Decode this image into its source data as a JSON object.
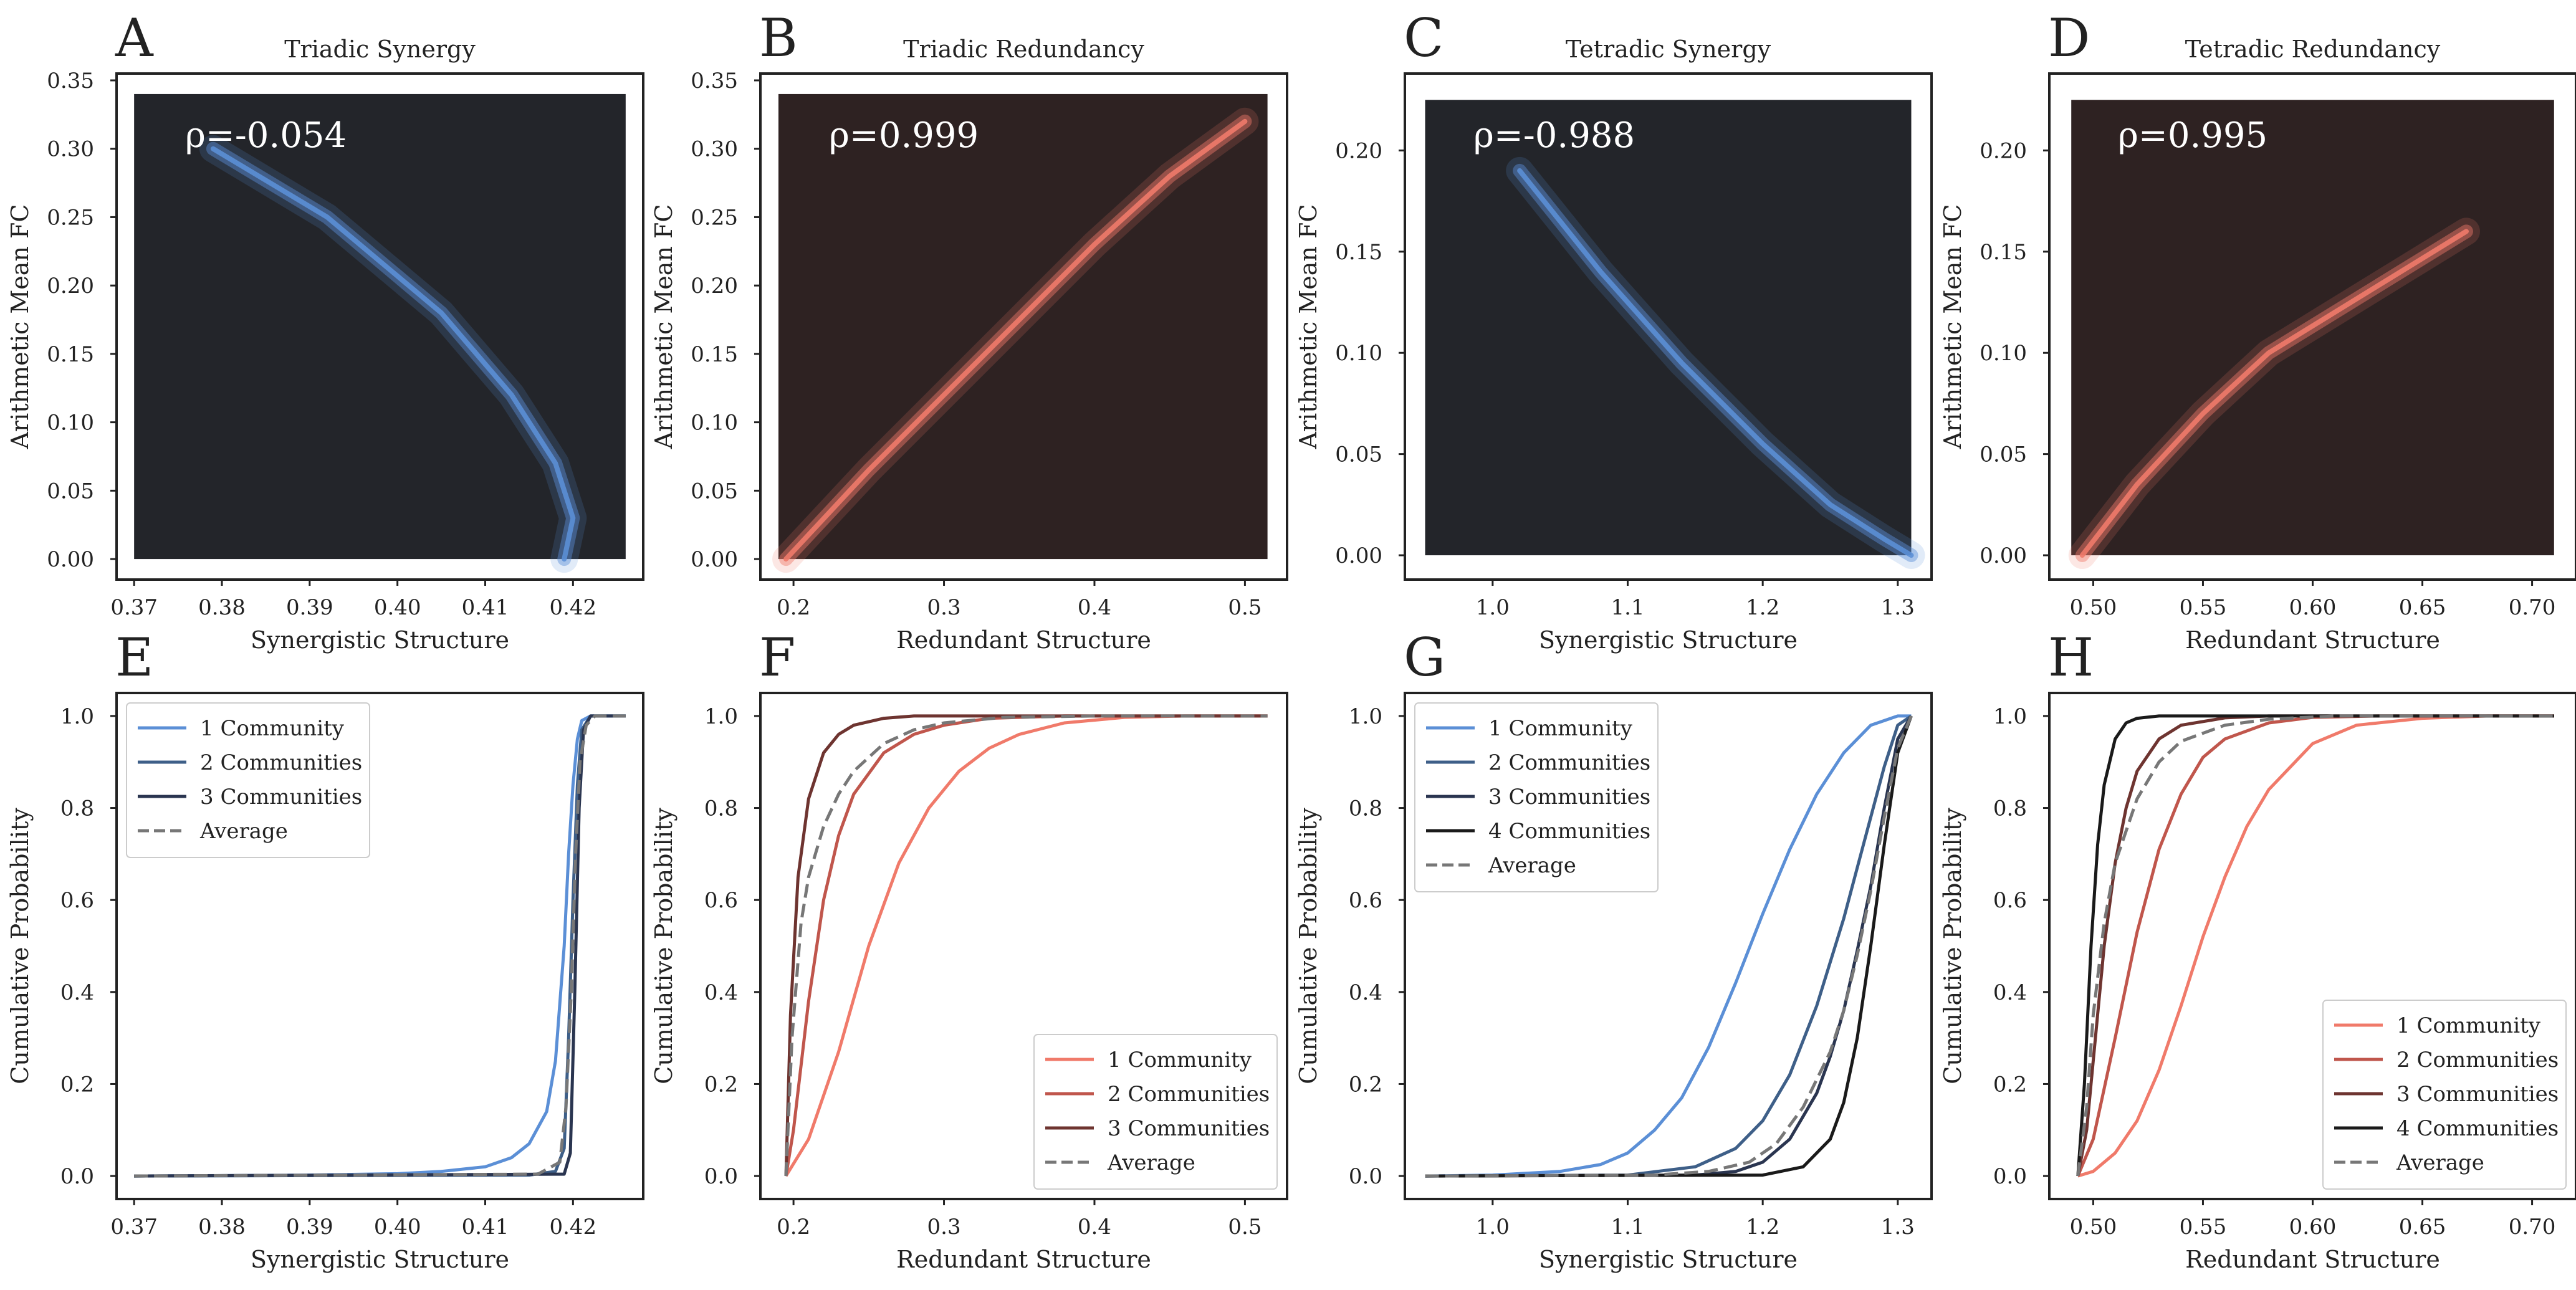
{
  "figure": {
    "colors": {
      "hex_bg_blue": "#23252a",
      "hex_bg_red": "#2e2222",
      "blue": "#5b8fd6",
      "red": "#f07a6a",
      "average": "#777777",
      "axis": "#222222",
      "annotation": "#ffffff"
    }
  },
  "chart_data": [
    {
      "panel": "A",
      "type": "heatmap",
      "title": "Triadic Synergy",
      "xlabel": "Synergistic Structure",
      "ylabel": "Arithmetic Mean FC",
      "xlim": [
        0.368,
        0.428
      ],
      "ylim": [
        -0.015,
        0.355
      ],
      "xticks": [
        0.37,
        0.38,
        0.39,
        0.4,
        0.41,
        0.42
      ],
      "xtick_labels": [
        "0.37",
        "0.38",
        "0.39",
        "0.40",
        "0.41",
        "0.42"
      ],
      "yticks": [
        0.0,
        0.05,
        0.1,
        0.15,
        0.2,
        0.25,
        0.3,
        0.35
      ],
      "ytick_labels": [
        "0.00",
        "0.05",
        "0.10",
        "0.15",
        "0.20",
        "0.25",
        "0.30",
        "0.35"
      ],
      "annotation": "ρ=-0.054",
      "color_scheme": "blue",
      "hexbin_extent": {
        "x": [
          0.37,
          0.426
        ],
        "y": [
          0.0,
          0.34
        ]
      },
      "trend": {
        "x": [
          0.379,
          0.392,
          0.405,
          0.413,
          0.418,
          0.42,
          0.419
        ],
        "y": [
          0.3,
          0.25,
          0.18,
          0.12,
          0.07,
          0.03,
          0.0
        ]
      }
    },
    {
      "panel": "B",
      "type": "heatmap",
      "title": "Triadic Redundancy",
      "xlabel": "Redundant Structure",
      "ylabel": "Arithmetic Mean FC",
      "xlim": [
        0.178,
        0.528
      ],
      "ylim": [
        -0.015,
        0.355
      ],
      "xticks": [
        0.2,
        0.3,
        0.4,
        0.5
      ],
      "xtick_labels": [
        "0.2",
        "0.3",
        "0.4",
        "0.5"
      ],
      "yticks": [
        0.0,
        0.05,
        0.1,
        0.15,
        0.2,
        0.25,
        0.3,
        0.35
      ],
      "ytick_labels": [
        "0.00",
        "0.05",
        "0.10",
        "0.15",
        "0.20",
        "0.25",
        "0.30",
        "0.35"
      ],
      "annotation": "ρ=0.999",
      "color_scheme": "red",
      "hexbin_extent": {
        "x": [
          0.19,
          0.515
        ],
        "y": [
          0.0,
          0.34
        ]
      },
      "trend": {
        "x": [
          0.195,
          0.25,
          0.3,
          0.35,
          0.4,
          0.45,
          0.5
        ],
        "y": [
          0.0,
          0.065,
          0.12,
          0.175,
          0.23,
          0.28,
          0.32
        ]
      }
    },
    {
      "panel": "C",
      "type": "heatmap",
      "title": "Tetradic Synergy",
      "xlabel": "Synergistic Structure",
      "ylabel": "Arithmetic Mean FC",
      "xlim": [
        0.935,
        1.325
      ],
      "ylim": [
        -0.012,
        0.238
      ],
      "xticks": [
        1.0,
        1.1,
        1.2,
        1.3
      ],
      "xtick_labels": [
        "1.0",
        "1.1",
        "1.2",
        "1.3"
      ],
      "yticks": [
        0.0,
        0.05,
        0.1,
        0.15,
        0.2
      ],
      "ytick_labels": [
        "0.00",
        "0.05",
        "0.10",
        "0.15",
        "0.20"
      ],
      "annotation": "ρ=-0.988",
      "color_scheme": "blue",
      "hexbin_extent": {
        "x": [
          0.95,
          1.31
        ],
        "y": [
          0.0,
          0.225
        ]
      },
      "trend": {
        "x": [
          1.02,
          1.08,
          1.14,
          1.2,
          1.25,
          1.29,
          1.31
        ],
        "y": [
          0.19,
          0.14,
          0.095,
          0.055,
          0.025,
          0.008,
          0.0
        ]
      }
    },
    {
      "panel": "D",
      "type": "heatmap",
      "title": "Tetradic Redundancy",
      "xlabel": "Redundant Structure",
      "ylabel": "Arithmetic Mean FC",
      "xlim": [
        0.48,
        0.72
      ],
      "ylim": [
        -0.012,
        0.238
      ],
      "xticks": [
        0.5,
        0.55,
        0.6,
        0.65,
        0.7
      ],
      "xtick_labels": [
        "0.50",
        "0.55",
        "0.60",
        "0.65",
        "0.70"
      ],
      "yticks": [
        0.0,
        0.05,
        0.1,
        0.15,
        0.2
      ],
      "ytick_labels": [
        "0.00",
        "0.05",
        "0.10",
        "0.15",
        "0.20"
      ],
      "annotation": "ρ=0.995",
      "color_scheme": "red",
      "hexbin_extent": {
        "x": [
          0.49,
          0.71
        ],
        "y": [
          0.0,
          0.225
        ]
      },
      "trend": {
        "x": [
          0.495,
          0.52,
          0.55,
          0.58,
          0.61,
          0.64,
          0.67
        ],
        "y": [
          0.0,
          0.035,
          0.07,
          0.1,
          0.12,
          0.14,
          0.16
        ]
      }
    },
    {
      "panel": "E",
      "type": "line",
      "title": "",
      "xlabel": "Synergistic Structure",
      "ylabel": "Cumulative Probability",
      "xlim": [
        0.368,
        0.428
      ],
      "ylim": [
        -0.05,
        1.05
      ],
      "xticks": [
        0.37,
        0.38,
        0.39,
        0.4,
        0.41,
        0.42
      ],
      "xtick_labels": [
        "0.37",
        "0.38",
        "0.39",
        "0.40",
        "0.41",
        "0.42"
      ],
      "yticks": [
        0.0,
        0.2,
        0.4,
        0.6,
        0.8,
        1.0
      ],
      "ytick_labels": [
        "0.0",
        "0.2",
        "0.4",
        "0.6",
        "0.8",
        "1.0"
      ],
      "legend_position": "top-left",
      "series": [
        {
          "name": "1 Community",
          "color": "#5b8fd6",
          "dash": false,
          "x": [
            0.37,
            0.39,
            0.4,
            0.405,
            0.41,
            0.413,
            0.415,
            0.417,
            0.418,
            0.419,
            0.4195,
            0.42,
            0.4205,
            0.421,
            0.422,
            0.426
          ],
          "y": [
            0.0,
            0.002,
            0.005,
            0.01,
            0.02,
            0.04,
            0.07,
            0.14,
            0.25,
            0.5,
            0.7,
            0.85,
            0.95,
            0.99,
            1.0,
            1.0
          ]
        },
        {
          "name": "2 Communities",
          "color": "#3e5f88",
          "dash": false,
          "x": [
            0.37,
            0.415,
            0.418,
            0.419,
            0.4195,
            0.42,
            0.4205,
            0.421,
            0.422,
            0.426
          ],
          "y": [
            0.0,
            0.002,
            0.01,
            0.06,
            0.3,
            0.6,
            0.85,
            0.97,
            1.0,
            1.0
          ]
        },
        {
          "name": "3 Communities",
          "color": "#2a3550",
          "dash": false,
          "x": [
            0.37,
            0.419,
            0.4197,
            0.4202,
            0.4207,
            0.4212,
            0.422,
            0.426
          ],
          "y": [
            0.0,
            0.004,
            0.05,
            0.4,
            0.8,
            0.97,
            1.0,
            1.0
          ]
        },
        {
          "name": "Average",
          "color": "#777777",
          "dash": true,
          "x": [
            0.37,
            0.416,
            0.4185,
            0.4192,
            0.4198,
            0.4203,
            0.4208,
            0.4215,
            0.4225,
            0.426
          ],
          "y": [
            0.0,
            0.004,
            0.03,
            0.15,
            0.4,
            0.7,
            0.9,
            0.98,
            1.0,
            1.0
          ]
        }
      ]
    },
    {
      "panel": "F",
      "type": "line",
      "title": "",
      "xlabel": "Redundant Structure",
      "ylabel": "Cumulative Probability",
      "xlim": [
        0.178,
        0.528
      ],
      "ylim": [
        -0.05,
        1.05
      ],
      "xticks": [
        0.2,
        0.3,
        0.4,
        0.5
      ],
      "xtick_labels": [
        "0.2",
        "0.3",
        "0.4",
        "0.5"
      ],
      "yticks": [
        0.0,
        0.2,
        0.4,
        0.6,
        0.8,
        1.0
      ],
      "ytick_labels": [
        "0.0",
        "0.2",
        "0.4",
        "0.6",
        "0.8",
        "1.0"
      ],
      "legend_position": "bottom-right",
      "series": [
        {
          "name": "1 Community",
          "color": "#f07a6a",
          "dash": false,
          "x": [
            0.195,
            0.21,
            0.23,
            0.25,
            0.27,
            0.29,
            0.31,
            0.33,
            0.35,
            0.38,
            0.42,
            0.46,
            0.515
          ],
          "y": [
            0.0,
            0.08,
            0.27,
            0.5,
            0.68,
            0.8,
            0.88,
            0.93,
            0.96,
            0.985,
            0.997,
            1.0,
            1.0
          ]
        },
        {
          "name": "2 Communities",
          "color": "#c0564c",
          "dash": false,
          "x": [
            0.195,
            0.2,
            0.21,
            0.22,
            0.23,
            0.24,
            0.26,
            0.28,
            0.3,
            0.33,
            0.38,
            0.515
          ],
          "y": [
            0.0,
            0.1,
            0.38,
            0.6,
            0.74,
            0.83,
            0.92,
            0.96,
            0.98,
            0.995,
            1.0,
            1.0
          ]
        },
        {
          "name": "3 Communities",
          "color": "#6e3430",
          "dash": false,
          "x": [
            0.195,
            0.198,
            0.203,
            0.21,
            0.22,
            0.23,
            0.24,
            0.26,
            0.28,
            0.31,
            0.515
          ],
          "y": [
            0.0,
            0.35,
            0.65,
            0.82,
            0.92,
            0.96,
            0.98,
            0.995,
            1.0,
            1.0,
            1.0
          ]
        },
        {
          "name": "Average",
          "color": "#777777",
          "dash": true,
          "x": [
            0.195,
            0.199,
            0.205,
            0.21,
            0.22,
            0.23,
            0.24,
            0.26,
            0.28,
            0.3,
            0.34,
            0.4,
            0.515
          ],
          "y": [
            0.0,
            0.3,
            0.55,
            0.65,
            0.76,
            0.83,
            0.88,
            0.94,
            0.97,
            0.985,
            0.997,
            1.0,
            1.0
          ]
        }
      ]
    },
    {
      "panel": "G",
      "type": "line",
      "title": "",
      "xlabel": "Synergistic Structure",
      "ylabel": "Cumulative Probability",
      "xlim": [
        0.935,
        1.325
      ],
      "ylim": [
        -0.05,
        1.05
      ],
      "xticks": [
        1.0,
        1.1,
        1.2,
        1.3
      ],
      "xtick_labels": [
        "1.0",
        "1.1",
        "1.2",
        "1.3"
      ],
      "yticks": [
        0.0,
        0.2,
        0.4,
        0.6,
        0.8,
        1.0
      ],
      "ytick_labels": [
        "0.0",
        "0.2",
        "0.4",
        "0.6",
        "0.8",
        "1.0"
      ],
      "legend_position": "top-left",
      "series": [
        {
          "name": "1 Community",
          "color": "#5b8fd6",
          "dash": false,
          "x": [
            0.95,
            1.0,
            1.05,
            1.08,
            1.1,
            1.12,
            1.14,
            1.16,
            1.18,
            1.2,
            1.22,
            1.24,
            1.26,
            1.28,
            1.3,
            1.31
          ],
          "y": [
            0.0,
            0.002,
            0.01,
            0.025,
            0.05,
            0.1,
            0.17,
            0.28,
            0.42,
            0.57,
            0.71,
            0.83,
            0.92,
            0.98,
            1.0,
            1.0
          ]
        },
        {
          "name": "2 Communities",
          "color": "#3e5f88",
          "dash": false,
          "x": [
            0.95,
            1.1,
            1.15,
            1.18,
            1.2,
            1.22,
            1.24,
            1.26,
            1.27,
            1.28,
            1.29,
            1.3,
            1.31
          ],
          "y": [
            0.0,
            0.002,
            0.02,
            0.06,
            0.12,
            0.22,
            0.37,
            0.56,
            0.67,
            0.78,
            0.89,
            0.98,
            1.0
          ]
        },
        {
          "name": "3 Communities",
          "color": "#2a3550",
          "dash": false,
          "x": [
            0.95,
            1.15,
            1.18,
            1.2,
            1.22,
            1.24,
            1.25,
            1.26,
            1.27,
            1.28,
            1.29,
            1.3,
            1.31
          ],
          "y": [
            0.0,
            0.002,
            0.01,
            0.03,
            0.08,
            0.18,
            0.26,
            0.36,
            0.49,
            0.63,
            0.8,
            0.95,
            1.0
          ]
        },
        {
          "name": "4 Communities",
          "color": "#1a1a1a",
          "dash": false,
          "x": [
            0.95,
            1.2,
            1.23,
            1.25,
            1.26,
            1.27,
            1.28,
            1.29,
            1.3,
            1.31
          ],
          "y": [
            0.0,
            0.002,
            0.02,
            0.08,
            0.16,
            0.3,
            0.5,
            0.72,
            0.92,
            1.0
          ]
        },
        {
          "name": "Average",
          "color": "#777777",
          "dash": true,
          "x": [
            0.95,
            1.12,
            1.16,
            1.19,
            1.21,
            1.23,
            1.25,
            1.26,
            1.27,
            1.28,
            1.29,
            1.3,
            1.31
          ],
          "y": [
            0.0,
            0.002,
            0.01,
            0.03,
            0.07,
            0.15,
            0.27,
            0.36,
            0.48,
            0.62,
            0.78,
            0.93,
            1.0
          ]
        }
      ]
    },
    {
      "panel": "H",
      "type": "line",
      "title": "",
      "xlabel": "Redundant Structure",
      "ylabel": "Cumulative Probability",
      "xlim": [
        0.48,
        0.72
      ],
      "ylim": [
        -0.05,
        1.05
      ],
      "xticks": [
        0.5,
        0.55,
        0.6,
        0.65,
        0.7
      ],
      "xtick_labels": [
        "0.50",
        "0.55",
        "0.60",
        "0.65",
        "0.70"
      ],
      "yticks": [
        0.0,
        0.2,
        0.4,
        0.6,
        0.8,
        1.0
      ],
      "ytick_labels": [
        "0.0",
        "0.2",
        "0.4",
        "0.6",
        "0.8",
        "1.0"
      ],
      "legend_position": "bottom-right",
      "series": [
        {
          "name": "1 Community",
          "color": "#f07a6a",
          "dash": false,
          "x": [
            0.493,
            0.5,
            0.51,
            0.52,
            0.53,
            0.54,
            0.55,
            0.56,
            0.57,
            0.58,
            0.6,
            0.62,
            0.65,
            0.68,
            0.71
          ],
          "y": [
            0.0,
            0.01,
            0.05,
            0.12,
            0.23,
            0.37,
            0.52,
            0.65,
            0.76,
            0.84,
            0.94,
            0.98,
            0.995,
            1.0,
            1.0
          ]
        },
        {
          "name": "2 Communities",
          "color": "#c0564c",
          "dash": false,
          "x": [
            0.493,
            0.5,
            0.51,
            0.52,
            0.53,
            0.54,
            0.55,
            0.56,
            0.58,
            0.6,
            0.63,
            0.71
          ],
          "y": [
            0.0,
            0.08,
            0.3,
            0.53,
            0.71,
            0.83,
            0.91,
            0.95,
            0.985,
            0.997,
            1.0,
            1.0
          ]
        },
        {
          "name": "3 Communities",
          "color": "#6e3430",
          "dash": false,
          "x": [
            0.493,
            0.497,
            0.5,
            0.505,
            0.51,
            0.515,
            0.52,
            0.53,
            0.54,
            0.56,
            0.58,
            0.71
          ],
          "y": [
            0.0,
            0.1,
            0.25,
            0.5,
            0.68,
            0.8,
            0.88,
            0.95,
            0.98,
            0.996,
            1.0,
            1.0
          ]
        },
        {
          "name": "4 Communities",
          "color": "#1a1a1a",
          "dash": false,
          "x": [
            0.493,
            0.496,
            0.499,
            0.502,
            0.505,
            0.51,
            0.515,
            0.52,
            0.53,
            0.55,
            0.71
          ],
          "y": [
            0.0,
            0.2,
            0.5,
            0.72,
            0.85,
            0.95,
            0.985,
            0.995,
            1.0,
            1.0,
            1.0
          ]
        },
        {
          "name": "Average",
          "color": "#777777",
          "dash": true,
          "x": [
            0.493,
            0.497,
            0.5,
            0.505,
            0.51,
            0.52,
            0.53,
            0.54,
            0.56,
            0.58,
            0.61,
            0.71
          ],
          "y": [
            0.0,
            0.15,
            0.35,
            0.55,
            0.68,
            0.82,
            0.9,
            0.945,
            0.98,
            0.993,
            1.0,
            1.0
          ]
        }
      ]
    }
  ]
}
